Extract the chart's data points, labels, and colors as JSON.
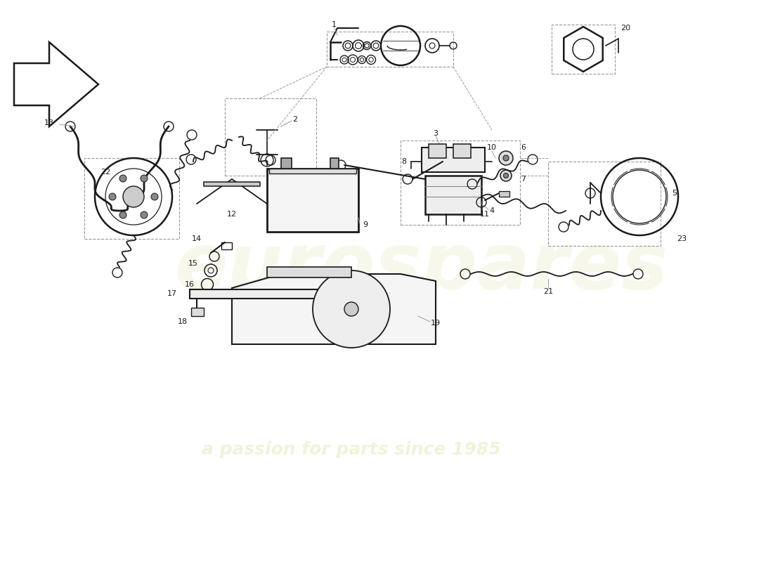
{
  "background_color": "#ffffff",
  "line_color": "#1a1a1a",
  "dashed_color": "#999999",
  "watermark1": "eurospares",
  "watermark2": "a passion for parts since 1985",
  "wm_color1": "#f2f2dc",
  "wm_color2": "#e8e8c0"
}
